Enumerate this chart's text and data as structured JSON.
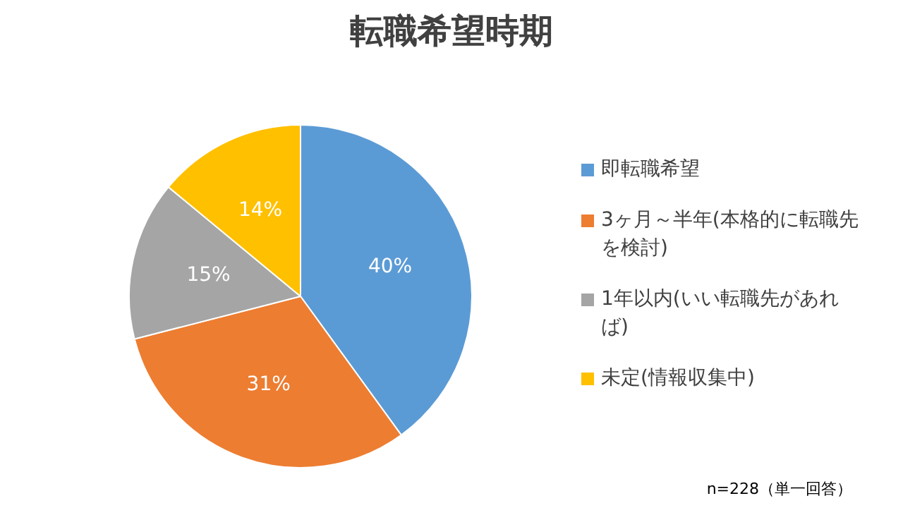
{
  "chart_data": {
    "type": "pie",
    "title": "転職希望時期",
    "categories": [
      "即転職希望",
      "3ヶ月～半年(本格的に転職先を検討)",
      "1年以内(いい転職先があれば)",
      "未定(情報収集中)"
    ],
    "values": [
      40,
      31,
      15,
      14
    ],
    "colors": [
      "#5b9bd5",
      "#ed7d31",
      "#a5a5a5",
      "#ffc000"
    ],
    "value_labels": [
      "40%",
      "31%",
      "15%",
      "14%"
    ],
    "legend": "right",
    "annotations": [
      "n=228（単一回答）"
    ]
  }
}
